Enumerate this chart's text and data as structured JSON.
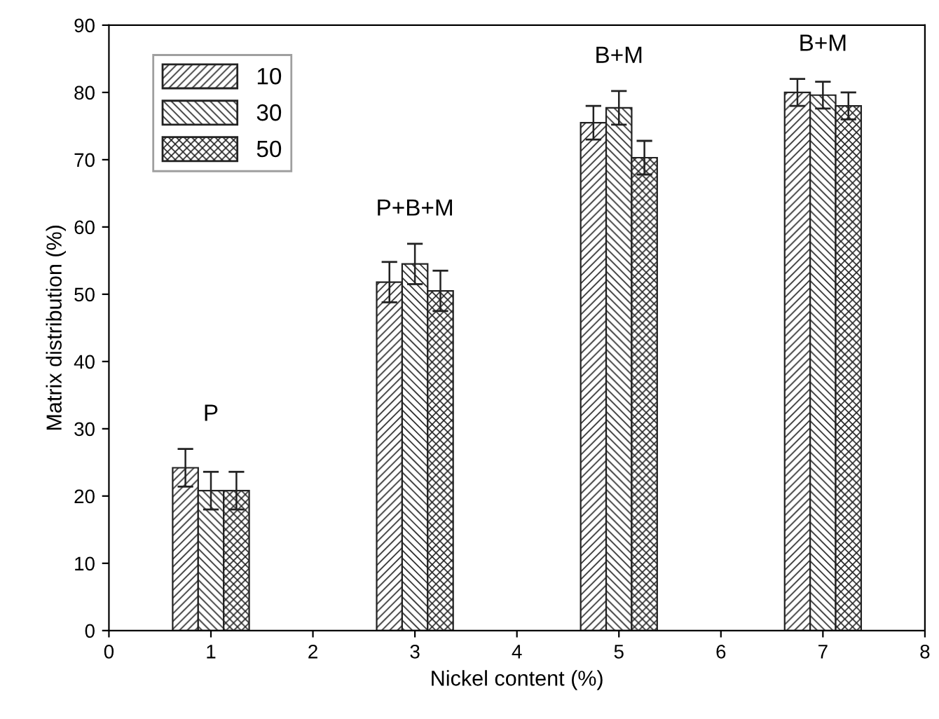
{
  "chart_data": {
    "type": "bar",
    "xlabel": "Nickel content (%)",
    "ylabel": "Matrix distribution (%)",
    "x": [
      1,
      3,
      5,
      7
    ],
    "series": [
      {
        "name": "10",
        "color": "#222222",
        "values": [
          24.2,
          51.8,
          75.5,
          80.0
        ],
        "errors": [
          2.8,
          3.0,
          2.5,
          2.0
        ]
      },
      {
        "name": "30",
        "color": "#222222",
        "values": [
          20.8,
          54.5,
          77.7,
          79.6
        ],
        "errors": [
          2.8,
          3.0,
          2.5,
          2.0
        ]
      },
      {
        "name": "50",
        "color": "#222222",
        "values": [
          20.8,
          50.5,
          70.3,
          78.0
        ],
        "errors": [
          2.8,
          3.0,
          2.5,
          2.0
        ]
      }
    ],
    "annotations": [
      "P",
      "P+B+M",
      "B+M",
      "B+M"
    ],
    "xlim": [
      0,
      8
    ],
    "xticks": [
      0,
      1,
      2,
      3,
      4,
      5,
      6,
      7,
      8
    ],
    "ylim": [
      0,
      90
    ],
    "yticks": [
      0,
      10,
      20,
      30,
      40,
      50,
      60,
      70,
      80,
      90
    ],
    "grid": false,
    "legend": "top left"
  }
}
